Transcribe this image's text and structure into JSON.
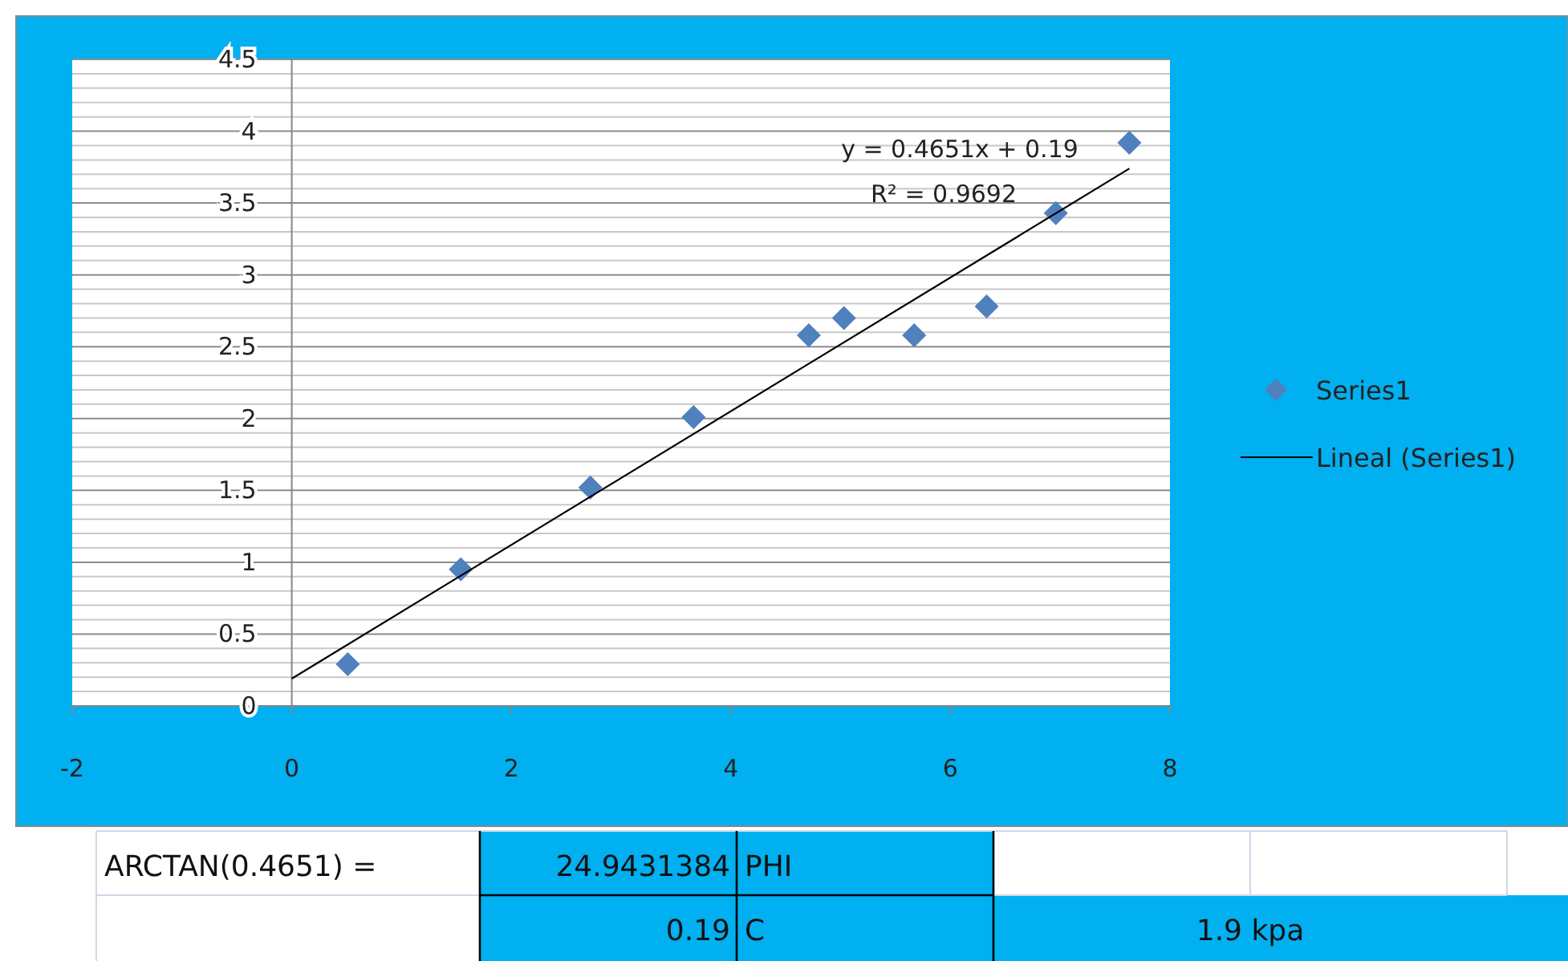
{
  "chart_data": {
    "type": "scatter",
    "xlim": [
      -2,
      8
    ],
    "xticks": [
      -2,
      0,
      2,
      4,
      6,
      8
    ],
    "ylim": [
      0,
      4.5
    ],
    "yticks": [
      0,
      {
        "value": 0.1,
        "label": null
      },
      {
        "value": 0.2,
        "label": null
      },
      {
        "value": 0.3,
        "label": null
      },
      {
        "value": 0.4,
        "label": null
      },
      0.5,
      {
        "value": 0.6,
        "label": null
      },
      {
        "value": 0.7,
        "label": null
      },
      {
        "value": 0.8,
        "label": null
      },
      {
        "value": 0.9,
        "label": null
      },
      1,
      {
        "value": 1.1,
        "label": null
      },
      {
        "value": 1.2,
        "label": null
      },
      {
        "value": 1.3,
        "label": null
      },
      {
        "value": 1.4,
        "label": null
      },
      1.5,
      {
        "value": 1.6,
        "label": null
      },
      {
        "value": 1.7,
        "label": null
      },
      {
        "value": 1.8,
        "label": null
      },
      {
        "value": 1.9,
        "label": null
      },
      2,
      {
        "value": 2.1,
        "label": null
      },
      {
        "value": 2.2,
        "label": null
      },
      {
        "value": 2.3,
        "label": null
      },
      {
        "value": 2.4,
        "label": null
      },
      2.5,
      {
        "value": 2.6,
        "label": null
      },
      {
        "value": 2.7,
        "label": null
      },
      {
        "value": 2.8,
        "label": null
      },
      {
        "value": 2.9,
        "label": null
      },
      3,
      {
        "value": 3.1,
        "label": null
      },
      {
        "value": 3.2,
        "label": null
      },
      {
        "value": 3.3,
        "label": null
      },
      {
        "value": 3.4,
        "label": null
      },
      3.5,
      {
        "value": 3.6,
        "label": null
      },
      {
        "value": 3.7,
        "label": null
      },
      {
        "value": 3.8,
        "label": null
      },
      {
        "value": 3.9,
        "label": null
      },
      4,
      {
        "value": 4.1,
        "label": null
      },
      {
        "value": 4.2,
        "label": null
      },
      {
        "value": 4.3,
        "label": null
      },
      {
        "value": 4.4,
        "label": null
      },
      4.5
    ],
    "grid": "y",
    "legend": "right",
    "marker": "diamond",
    "series": [
      {
        "name": "Series1",
        "color": "#4f81bd",
        "x": [
          0.51,
          1.54,
          2.72,
          3.66,
          4.71,
          5.03,
          5.67,
          6.33,
          6.96,
          7.63
        ],
        "values": [
          0.29,
          0.95,
          1.52,
          2.01,
          2.58,
          2.7,
          2.58,
          2.78,
          3.43,
          3.92
        ]
      },
      {
        "name": "Lineal (Series1)",
        "type": "line",
        "color": "#000000",
        "marker": "none",
        "x": [
          0,
          7.63
        ],
        "values": [
          0.19,
          3.74
        ]
      }
    ],
    "annotations": [
      "y = 0.4651x + 0.19",
      "R² = 0.9692",
      "ARCTAN(0.4651) =",
      "24.9431384",
      "PHI",
      "0.19",
      "C",
      "1.9 kpa"
    ]
  }
}
